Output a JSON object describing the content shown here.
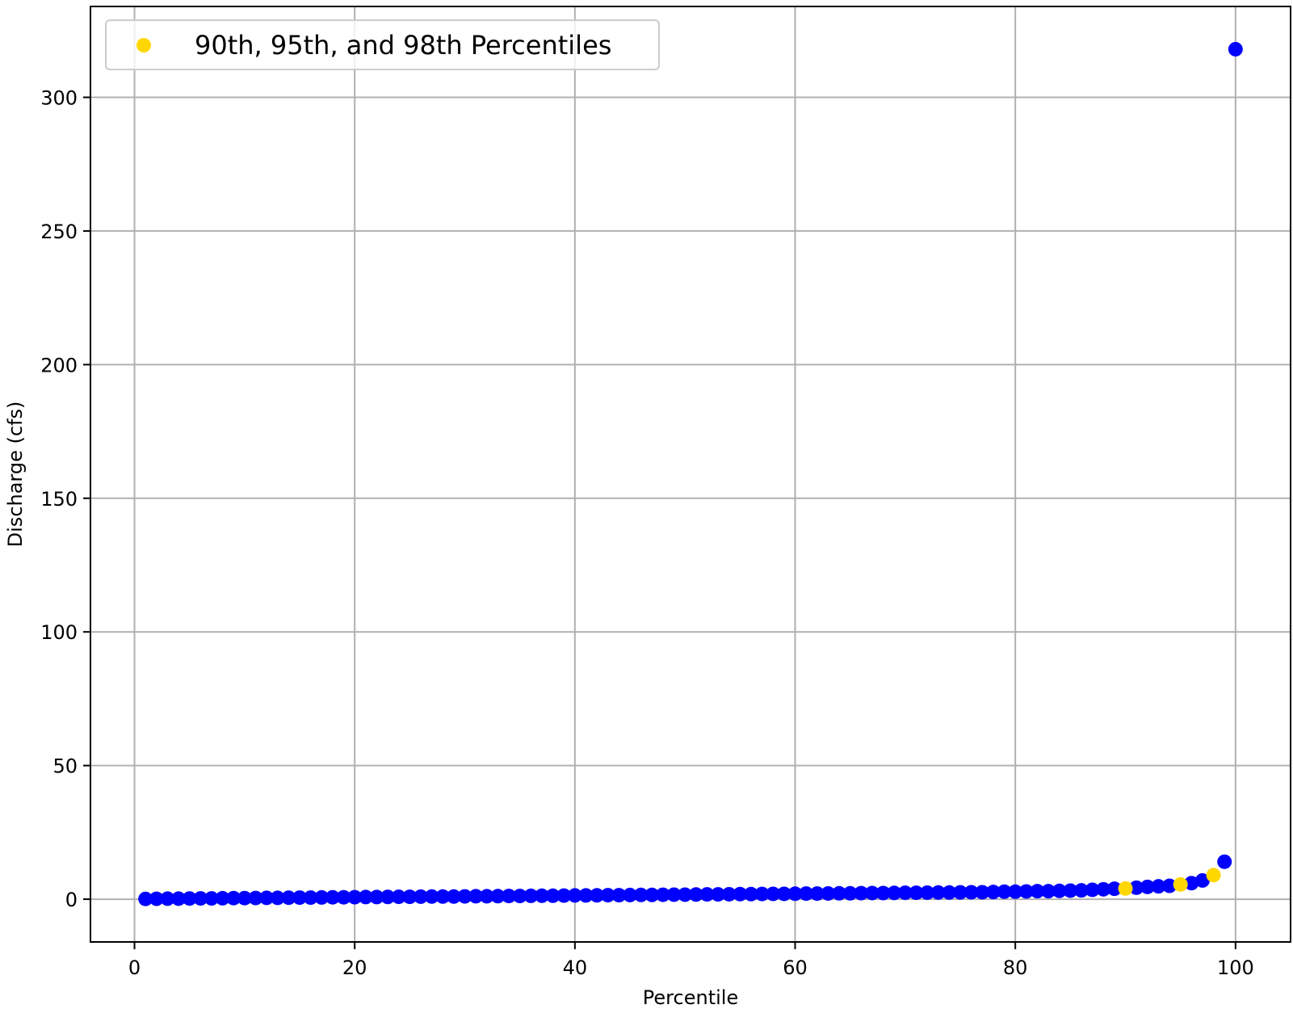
{
  "chart_data": {
    "type": "scatter",
    "title": "",
    "xlabel": "Percentile",
    "ylabel": "Discharge (cfs)",
    "xlim": [
      -4,
      105
    ],
    "ylim": [
      -16,
      334
    ],
    "x_ticks": [
      0,
      20,
      40,
      60,
      80,
      100
    ],
    "y_ticks": [
      0,
      50,
      100,
      150,
      200,
      250,
      300
    ],
    "grid": true,
    "legend": {
      "placement": "top-left",
      "entries": [
        "90th, 95th, and 98th Percentiles"
      ]
    },
    "series": [
      {
        "color": "#0000ff",
        "x": [
          1,
          2,
          3,
          4,
          5,
          6,
          7,
          8,
          9,
          10,
          11,
          12,
          13,
          14,
          15,
          16,
          17,
          18,
          19,
          20,
          21,
          22,
          23,
          24,
          25,
          26,
          27,
          28,
          29,
          30,
          31,
          32,
          33,
          34,
          35,
          36,
          37,
          38,
          39,
          40,
          41,
          42,
          43,
          44,
          45,
          46,
          47,
          48,
          49,
          50,
          51,
          52,
          53,
          54,
          55,
          56,
          57,
          58,
          59,
          60,
          61,
          62,
          63,
          64,
          65,
          66,
          67,
          68,
          69,
          70,
          71,
          72,
          73,
          74,
          75,
          76,
          77,
          78,
          79,
          80,
          81,
          82,
          83,
          84,
          85,
          86,
          87,
          88,
          89,
          91,
          92,
          93,
          94,
          96,
          97,
          99,
          100
        ],
        "y": [
          0.1,
          0.15,
          0.2,
          0.2,
          0.25,
          0.3,
          0.3,
          0.35,
          0.4,
          0.4,
          0.45,
          0.5,
          0.5,
          0.55,
          0.6,
          0.6,
          0.65,
          0.7,
          0.7,
          0.75,
          0.8,
          0.8,
          0.85,
          0.9,
          0.9,
          0.95,
          1.0,
          1.0,
          1.0,
          1.05,
          1.1,
          1.1,
          1.15,
          1.2,
          1.2,
          1.25,
          1.3,
          1.3,
          1.35,
          1.4,
          1.4,
          1.45,
          1.5,
          1.5,
          1.55,
          1.6,
          1.6,
          1.65,
          1.7,
          1.7,
          1.75,
          1.8,
          1.8,
          1.85,
          1.9,
          1.9,
          1.95,
          2.0,
          2.0,
          2.05,
          2.1,
          2.1,
          2.15,
          2.2,
          2.2,
          2.25,
          2.3,
          2.3,
          2.35,
          2.4,
          2.4,
          2.45,
          2.5,
          2.5,
          2.55,
          2.6,
          2.6,
          2.7,
          2.8,
          2.8,
          2.9,
          3.0,
          3.0,
          3.1,
          3.2,
          3.3,
          3.5,
          3.7,
          3.9,
          4.3,
          4.6,
          4.8,
          5.0,
          6.0,
          7.0,
          14.0,
          318.0
        ]
      },
      {
        "name": "90th, 95th, and 98th Percentiles",
        "color": "#ffd700",
        "x": [
          90,
          95,
          98
        ],
        "y": [
          4.0,
          5.5,
          9.0
        ]
      }
    ]
  }
}
